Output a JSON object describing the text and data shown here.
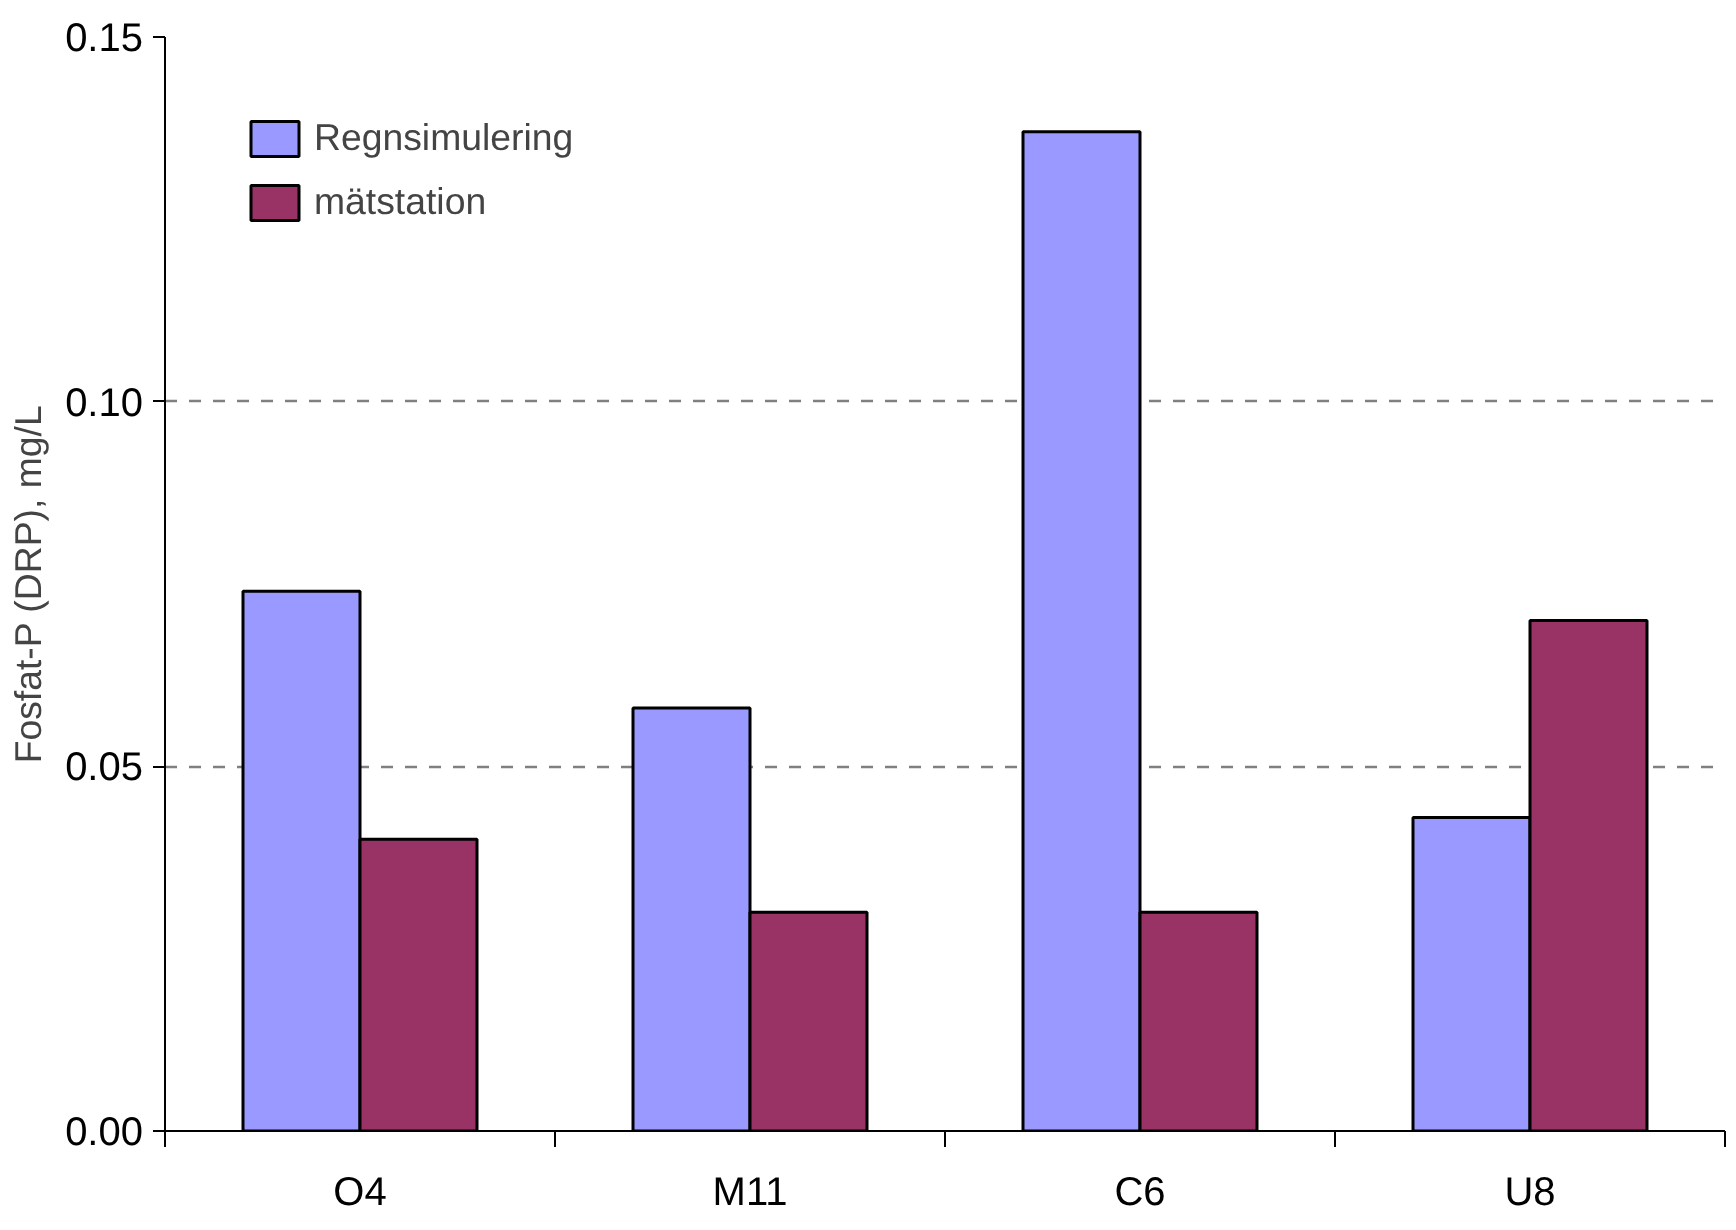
{
  "chart_data": {
    "type": "bar",
    "ylabel": "Fosfat-P (DRP), mg/L",
    "categories": [
      "O4",
      "M11",
      "C6",
      "U8"
    ],
    "series": [
      {
        "name": "Regnsimulering",
        "color": "#9999ff",
        "values": [
          0.074,
          0.058,
          0.137,
          0.043
        ]
      },
      {
        "name": "mätstation",
        "color": "#993366",
        "values": [
          0.04,
          0.03,
          0.03,
          0.07
        ]
      }
    ],
    "ylim": [
      0,
      0.15
    ],
    "yticks": [
      {
        "value": 0,
        "label": "0.00"
      },
      {
        "value": 0.05,
        "label": "0.05"
      },
      {
        "value": 0.1,
        "label": "0.10"
      },
      {
        "value": 0.15,
        "label": "0.15"
      }
    ],
    "grid": "y",
    "legend": "top left"
  }
}
